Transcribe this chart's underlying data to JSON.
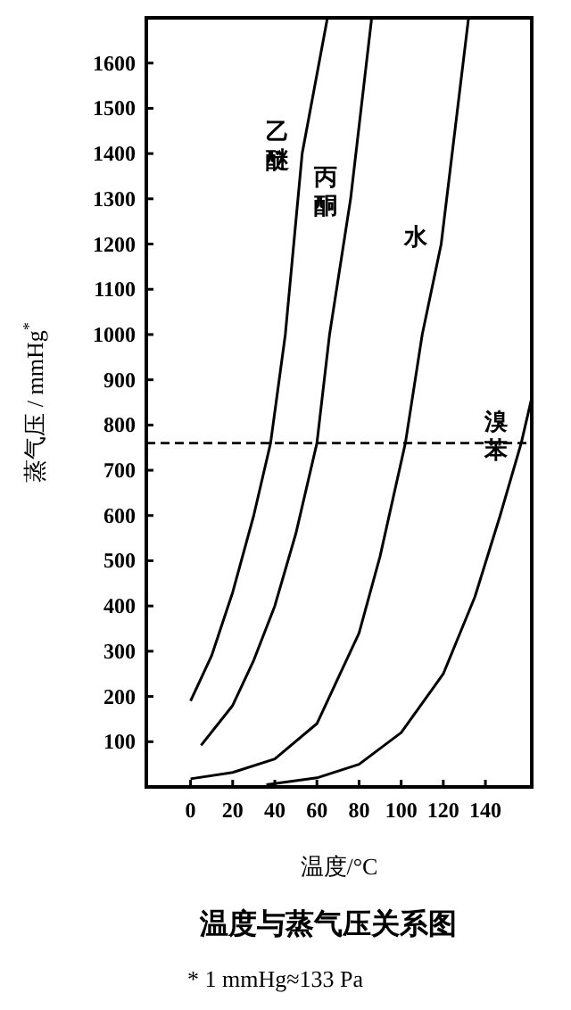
{
  "chart_data": {
    "type": "line",
    "title": "温度与蒸气压关系图",
    "xlabel": "温度/°C",
    "ylabel": "蒸气压 / mmHg$^{*}$",
    "annotations": [
      "* 1 mmHg≈133 Pa"
    ],
    "xlim": [
      -21,
      162
    ],
    "ylim": [
      0,
      1700
    ],
    "xticks": [
      0,
      20,
      40,
      60,
      80,
      100,
      120,
      140
    ],
    "yticks": [
      100,
      200,
      300,
      400,
      500,
      600,
      700,
      800,
      900,
      1000,
      1100,
      1200,
      1300,
      1400,
      1500,
      1600
    ],
    "grid": false,
    "marker": "none",
    "line_style": "solid",
    "ref_lines": [
      {
        "axis": "y",
        "value": 760,
        "line_style": "dashed",
        "color": "#000000"
      }
    ],
    "series": [
      {
        "name": "乙醚",
        "color": "#000000",
        "x": [
          0,
          10,
          20,
          30,
          38,
          45,
          53,
          65
        ],
        "values": [
          190,
          290,
          430,
          600,
          760,
          1000,
          1400,
          1700
        ]
      },
      {
        "name": "丙酮",
        "color": "#000000",
        "x": [
          5,
          20,
          30,
          40,
          50,
          60,
          66,
          76,
          86
        ],
        "values": [
          92,
          180,
          280,
          400,
          560,
          760,
          1000,
          1300,
          1700
        ]
      },
      {
        "name": "水",
        "color": "#000000",
        "x": [
          0,
          20,
          40,
          60,
          80,
          90,
          102,
          110,
          119,
          132
        ],
        "values": [
          18,
          32,
          62,
          140,
          340,
          510,
          760,
          1000,
          1200,
          1700
        ]
      },
      {
        "name": "溴苯",
        "color": "#000000",
        "x": [
          36,
          60,
          80,
          100,
          120,
          135,
          147,
          157,
          162
        ],
        "values": [
          5,
          20,
          50,
          120,
          250,
          420,
          600,
          760,
          860
        ]
      }
    ]
  }
}
